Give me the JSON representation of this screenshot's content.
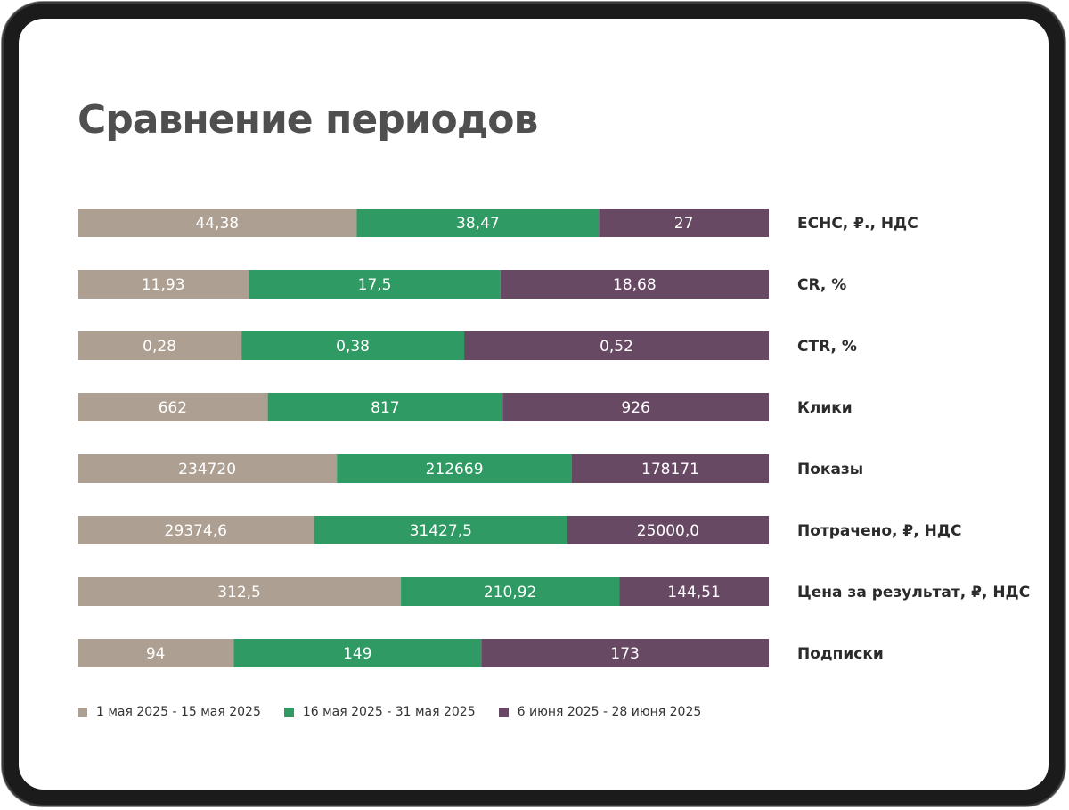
{
  "title": "Сравнение периодов",
  "colors": {
    "frame": "#1b1b1b",
    "title": "#4f4f4f",
    "row_label": "#2b2b2b"
  },
  "chart_data": {
    "type": "bar",
    "orientation": "horizontal",
    "stacked": "100%",
    "legend_position": "bottom-left",
    "grid": false,
    "categories": [
      "ЕСНС, ₽., НДС",
      "CR, %",
      "CTR, %",
      "Клики",
      "Показы",
      "Потрачено, ₽, НДС",
      "Цена за результат, ₽, НДС",
      "Подписки"
    ],
    "series": [
      {
        "name": "1 мая 2025 - 15 мая 2025",
        "color": "#ada092",
        "values": [
          44.38,
          11.93,
          0.28,
          662,
          234720,
          29374.6,
          312.5,
          94
        ],
        "labels": [
          "44,38",
          "11,93",
          "0,28",
          "662",
          "234720",
          "29374,6",
          "312,5",
          "94"
        ]
      },
      {
        "name": "16 мая 2025 - 31 мая 2025",
        "color": "#2f9a63",
        "values": [
          38.47,
          17.5,
          0.38,
          817,
          212669,
          31427.5,
          210.92,
          149
        ],
        "labels": [
          "38,47",
          "17,5",
          "0,38",
          "817",
          "212669",
          "31427,5",
          "210,92",
          "149"
        ]
      },
      {
        "name": "6 июня 2025 - 28 июня 2025",
        "color": "#684964",
        "values": [
          27,
          18.68,
          0.52,
          926,
          178171,
          25000.0,
          144.51,
          173
        ],
        "labels": [
          "27",
          "18,68",
          "0,52",
          "926",
          "178171",
          "25000,0",
          "144,51",
          "173"
        ]
      }
    ]
  }
}
